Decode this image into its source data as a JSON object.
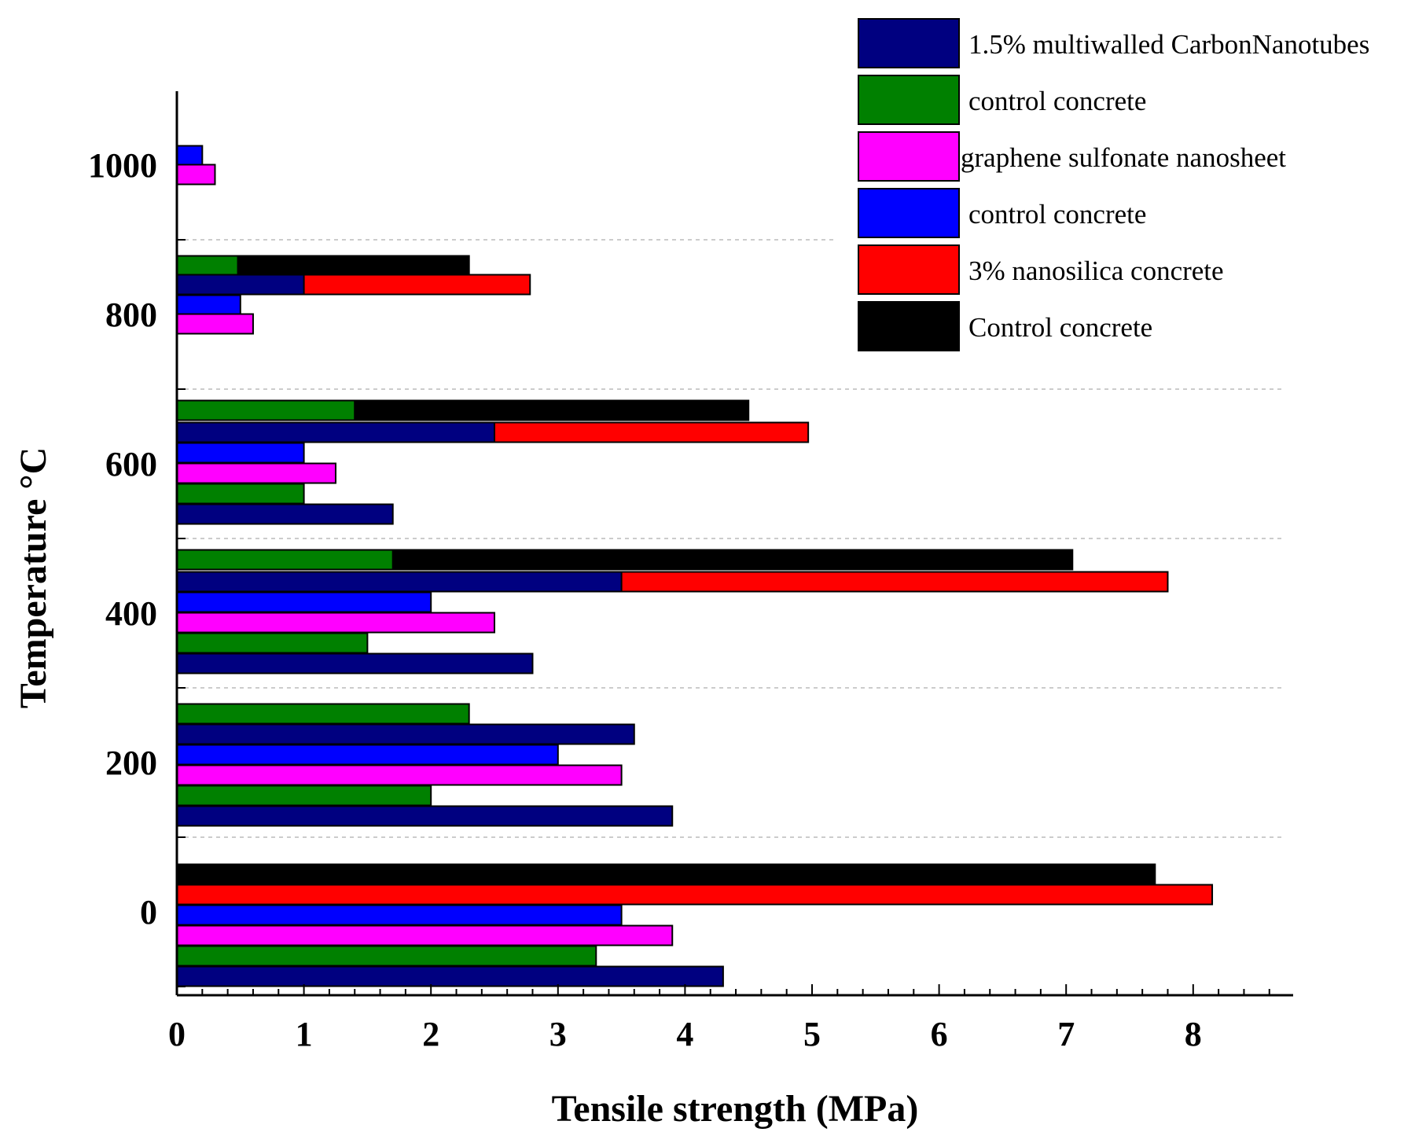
{
  "chart_data": {
    "type": "bar",
    "orientation": "horizontal",
    "title": "",
    "xlabel": "Tensile strength (MPa)",
    "ylabel": "Temperature °C",
    "xlim": [
      0,
      8.8
    ],
    "ylim": [
      -100,
      1100
    ],
    "x_ticks": [
      "0",
      "1",
      "2",
      "3",
      "4",
      "5",
      "6",
      "7",
      "8"
    ],
    "y_ticks": [
      "0",
      "200",
      "400",
      "600",
      "800",
      "1000"
    ],
    "legend_position": "top-right",
    "series": [
      {
        "name": "1.5% multiwalled CarbonNanotubes",
        "color": "#000080"
      },
      {
        "name": "control concrete",
        "color": "#008000"
      },
      {
        "name": "graphene sulfonate nanosheet",
        "color": "#ff00ff"
      },
      {
        "name": "control concrete",
        "color": "#0000ff"
      },
      {
        "name": "3% nanosilica concrete",
        "color": "#ff0000"
      },
      {
        "name": "Control concrete",
        "color": "#000000"
      }
    ],
    "bars": [
      {
        "series": 5,
        "temp": 0,
        "offset": -48,
        "value": 7.7
      },
      {
        "series": 4,
        "temp": 0,
        "offset": -22,
        "value": 8.15
      },
      {
        "series": 3,
        "temp": 0,
        "offset": 4,
        "value": 3.5
      },
      {
        "series": 2,
        "temp": 0,
        "offset": 30,
        "value": 3.9
      },
      {
        "series": 1,
        "temp": 0,
        "offset": 56,
        "value": 3.3
      },
      {
        "series": 0,
        "temp": 0,
        "offset": 82,
        "value": 4.3
      },
      {
        "series": 1,
        "temp": 200,
        "offset": -62,
        "value": 2.3
      },
      {
        "series": 0,
        "temp": 200,
        "offset": -36,
        "value": 3.6
      },
      {
        "series": 3,
        "temp": 200,
        "offset": -10,
        "value": 3.0
      },
      {
        "series": 2,
        "temp": 200,
        "offset": 16,
        "value": 3.5
      },
      {
        "series": 1,
        "temp": 200,
        "offset": 42,
        "value": 2.0
      },
      {
        "series": 0,
        "temp": 200,
        "offset": 68,
        "value": 3.9
      },
      {
        "series": 5,
        "temp": 400,
        "offset": -68,
        "value": 7.05
      },
      {
        "series": 1,
        "temp": 400,
        "offset": -68,
        "value": 1.7
      },
      {
        "series": 4,
        "temp": 400,
        "offset": -40,
        "value": 7.8
      },
      {
        "series": 0,
        "temp": 400,
        "offset": -40,
        "value": 3.5
      },
      {
        "series": 3,
        "temp": 400,
        "offset": -14,
        "value": 2.0
      },
      {
        "series": 2,
        "temp": 400,
        "offset": 12,
        "value": 2.5
      },
      {
        "series": 1,
        "temp": 400,
        "offset": 38,
        "value": 1.5
      },
      {
        "series": 0,
        "temp": 400,
        "offset": 64,
        "value": 2.8
      },
      {
        "series": 5,
        "temp": 600,
        "offset": -68,
        "value": 4.5
      },
      {
        "series": 1,
        "temp": 600,
        "offset": -68,
        "value": 1.4
      },
      {
        "series": 4,
        "temp": 600,
        "offset": -40,
        "value": 4.97
      },
      {
        "series": 0,
        "temp": 600,
        "offset": -40,
        "value": 2.5
      },
      {
        "series": 3,
        "temp": 600,
        "offset": -14,
        "value": 1.0
      },
      {
        "series": 2,
        "temp": 600,
        "offset": 12,
        "value": 1.25
      },
      {
        "series": 1,
        "temp": 600,
        "offset": 38,
        "value": 1.0
      },
      {
        "series": 0,
        "temp": 600,
        "offset": 64,
        "value": 1.7
      },
      {
        "series": 5,
        "temp": 800,
        "offset": -62,
        "value": 2.3
      },
      {
        "series": 1,
        "temp": 800,
        "offset": -62,
        "value": 0.48
      },
      {
        "series": 4,
        "temp": 800,
        "offset": -38,
        "value": 2.78
      },
      {
        "series": 0,
        "temp": 800,
        "offset": -38,
        "value": 1.0
      },
      {
        "series": 3,
        "temp": 800,
        "offset": -12,
        "value": 0.5
      },
      {
        "series": 2,
        "temp": 800,
        "offset": 12,
        "value": 0.6
      },
      {
        "series": 3,
        "temp": 1000,
        "offset": -12,
        "value": 0.2
      },
      {
        "series": 2,
        "temp": 1000,
        "offset": 12,
        "value": 0.3
      }
    ]
  }
}
